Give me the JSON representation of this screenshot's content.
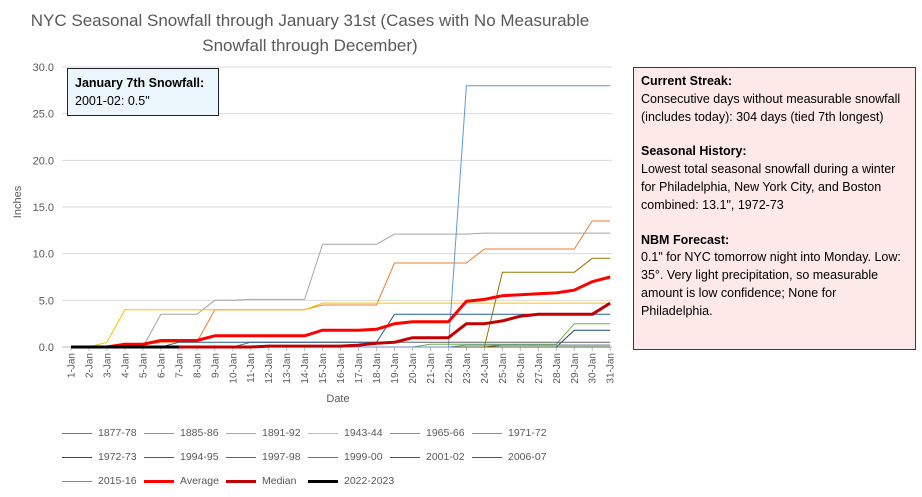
{
  "chart_data": {
    "type": "line",
    "title": "NYC Seasonal Snowfall through January 31st (Cases with No Measurable Snowfall through December)",
    "xlabel": "Date",
    "ylabel": "Inches",
    "ylim": [
      0,
      30
    ],
    "yticks": [
      "0.0",
      "5.0",
      "10.0",
      "15.0",
      "20.0",
      "25.0",
      "30.0"
    ],
    "grid": "horizontal",
    "legend_position": "bottom",
    "categories": [
      "1-Jan",
      "2-Jan",
      "3-Jan",
      "4-Jan",
      "5-Jan",
      "6-Jan",
      "7-Jan",
      "8-Jan",
      "9-Jan",
      "10-Jan",
      "11-Jan",
      "12-Jan",
      "13-Jan",
      "14-Jan",
      "15-Jan",
      "16-Jan",
      "17-Jan",
      "18-Jan",
      "19-Jan",
      "20-Jan",
      "21-Jan",
      "22-Jan",
      "23-Jan",
      "24-Jan",
      "25-Jan",
      "26-Jan",
      "27-Jan",
      "28-Jan",
      "29-Jan",
      "30-Jan",
      "31-Jan"
    ],
    "series": [
      {
        "name": "1877-78",
        "color": "#5b7bb5",
        "width": 1,
        "values": [
          0,
          0,
          0,
          0,
          0,
          0,
          0,
          0,
          0,
          0,
          0,
          0,
          0,
          0,
          0,
          0,
          0,
          0,
          0,
          0,
          0,
          0,
          0,
          0,
          0,
          0,
          0,
          0,
          0,
          0,
          0
        ]
      },
      {
        "name": "1885-86",
        "color": "#ed7d31",
        "width": 1,
        "values": [
          0,
          0,
          0,
          0.2,
          0.2,
          0.5,
          0.5,
          0.5,
          4,
          4,
          4,
          4,
          4,
          4,
          4.5,
          4.5,
          4.5,
          4.5,
          9,
          9,
          9,
          9,
          9,
          10.5,
          10.5,
          10.5,
          10.5,
          10.5,
          10.5,
          13.5,
          13.5
        ]
      },
      {
        "name": "1891-92",
        "color": "#a5a5a5",
        "width": 1,
        "values": [
          0,
          0,
          0,
          0,
          0,
          3.5,
          3.5,
          3.5,
          5,
          5,
          5.1,
          5.1,
          5.1,
          5.1,
          11,
          11,
          11,
          11,
          12.1,
          12.1,
          12.1,
          12.1,
          12.1,
          12.2,
          12.2,
          12.2,
          12.2,
          12.2,
          12.2,
          12.2,
          12.2
        ]
      },
      {
        "name": "1943-44",
        "color": "#ffc000",
        "width": 1,
        "values": [
          0,
          0,
          0.5,
          4,
          4,
          4,
          4,
          4,
          4,
          4,
          4,
          4,
          4,
          4,
          4.7,
          4.7,
          4.7,
          4.7,
          4.7,
          4.7,
          4.7,
          4.7,
          4.7,
          4.7,
          4.7,
          4.7,
          4.7,
          4.7,
          4.7,
          4.7,
          4.7
        ]
      },
      {
        "name": "1965-66",
        "color": "#5b9bd5",
        "width": 1,
        "values": [
          0,
          0,
          0,
          0,
          0,
          0,
          0,
          0,
          0,
          0,
          0,
          0,
          0,
          0,
          0,
          0,
          0,
          0,
          0,
          0,
          0,
          0,
          28,
          28,
          28,
          28,
          28,
          28,
          28,
          28,
          28
        ]
      },
      {
        "name": "1971-72",
        "color": "#70ad47",
        "width": 1,
        "values": [
          0,
          0,
          0,
          0,
          0,
          0,
          0,
          0,
          0,
          0,
          0,
          0,
          0,
          0,
          0,
          0,
          0,
          0,
          0,
          0,
          0.3,
          0.3,
          0.3,
          0.3,
          0.3,
          0.3,
          0.3,
          0.3,
          2.5,
          2.5,
          2.5
        ]
      },
      {
        "name": "1972-73",
        "color": "#264478",
        "width": 1,
        "values": [
          0,
          0,
          0,
          0,
          0,
          0,
          0,
          0,
          0,
          0,
          0,
          0,
          0,
          0,
          0,
          0,
          0,
          0,
          0,
          0,
          0,
          0,
          0,
          0,
          0,
          0,
          0,
          0,
          1.8,
          1.8,
          1.8
        ]
      },
      {
        "name": "1994-95",
        "color": "#9e480e",
        "width": 1,
        "values": [
          0,
          0,
          0,
          0,
          0,
          0,
          0,
          0,
          0,
          0,
          0,
          0,
          0,
          0,
          0,
          0,
          0,
          0,
          0,
          0,
          0,
          0,
          0,
          0,
          0.2,
          0.2,
          0.2,
          0.2,
          0.2,
          0.2,
          0.2
        ]
      },
      {
        "name": "1997-98",
        "color": "#636363",
        "width": 1,
        "values": [
          0,
          0,
          0,
          0,
          0,
          0,
          0,
          0,
          0,
          0,
          0.5,
          0.5,
          0.5,
          0.5,
          0.5,
          0.5,
          0.5,
          0.5,
          0.5,
          0.5,
          0.5,
          0.5,
          0.5,
          0.5,
          0.5,
          0.5,
          0.5,
          0.5,
          0.5,
          0.5,
          0.5
        ]
      },
      {
        "name": "1999-00",
        "color": "#997300",
        "width": 1,
        "values": [
          0,
          0,
          0,
          0,
          0,
          0,
          0,
          0,
          0,
          0,
          0,
          0,
          0,
          0,
          0,
          0,
          0,
          0,
          0,
          0,
          0,
          0,
          0,
          0,
          8,
          8,
          8,
          8,
          8,
          9.5,
          9.5
        ]
      },
      {
        "name": "2001-02",
        "color": "#255e91",
        "width": 1,
        "values": [
          0,
          0,
          0,
          0,
          0,
          0,
          0.5,
          0.5,
          0.5,
          0.5,
          0.5,
          0.5,
          0.5,
          0.5,
          0.5,
          0.5,
          0.5,
          0.5,
          3.5,
          3.5,
          3.5,
          3.5,
          3.5,
          3.5,
          3.5,
          3.5,
          3.5,
          3.5,
          3.5,
          3.5,
          3.5
        ]
      },
      {
        "name": "2006-07",
        "color": "#43682b",
        "width": 1,
        "values": [
          0,
          0,
          0,
          0,
          0,
          0,
          0,
          0,
          0,
          0,
          0,
          0,
          0,
          0,
          0,
          0,
          0,
          0,
          0,
          0,
          0,
          0,
          0,
          0,
          0,
          0,
          0,
          0,
          0,
          0,
          0
        ]
      },
      {
        "name": "2015-16",
        "color": "#698ed0",
        "width": 1,
        "values": [
          0,
          0,
          0,
          0,
          0,
          0,
          0,
          0,
          0,
          0,
          0,
          0,
          0,
          0,
          0,
          0,
          0,
          0,
          0,
          0,
          0,
          0,
          0.2,
          0.2,
          0.2,
          0.2,
          0.2,
          0.2,
          0.2,
          0.2,
          0.2
        ]
      },
      {
        "name": "Average",
        "color": "#ff0000",
        "width": 3,
        "values": [
          0,
          0,
          0,
          0.3,
          0.3,
          0.7,
          0.7,
          0.7,
          1.2,
          1.2,
          1.2,
          1.2,
          1.2,
          1.2,
          1.8,
          1.8,
          1.8,
          1.9,
          2.5,
          2.7,
          2.7,
          2.7,
          4.9,
          5.1,
          5.5,
          5.6,
          5.7,
          5.8,
          6.1,
          7,
          7.5
        ]
      },
      {
        "name": "Median",
        "color": "#c00000",
        "width": 3,
        "values": [
          0,
          0,
          0,
          0,
          0,
          0,
          0,
          0,
          0,
          0,
          0,
          0.1,
          0.1,
          0.1,
          0.1,
          0.1,
          0.2,
          0.4,
          0.5,
          1,
          1,
          1,
          2.5,
          2.5,
          2.8,
          3.3,
          3.5,
          3.5,
          3.5,
          3.5,
          4.7
        ]
      },
      {
        "name": "2022-2023",
        "color": "#000000",
        "width": 3,
        "values": [
          0,
          0,
          0,
          0,
          0,
          0,
          0,
          null,
          null,
          null,
          null,
          null,
          null,
          null,
          null,
          null,
          null,
          null,
          null,
          null,
          null,
          null,
          null,
          null,
          null,
          null,
          null,
          null,
          null,
          null,
          null
        ]
      }
    ]
  },
  "annotation_jan7": {
    "heading": "January 7th Snowfall:",
    "line": "2001-02: 0.5\""
  },
  "info_box": {
    "streak_heading": "Current Streak:",
    "streak_text": "Consecutive days without measurable snowfall (includes today): 304 days (tied 7th longest)",
    "history_heading": "Seasonal History:",
    "history_text": "Lowest total seasonal snowfall during a winter for Philadelphia, New York City, and Boston combined: 13.1\", 1972-73",
    "nbm_heading": "NBM Forecast:",
    "nbm_text": "0.1\" for NYC tomorrow night into Monday. Low: 35°. Very light precipitation, so measurable amount is low confidence; None for Philadelphia."
  }
}
